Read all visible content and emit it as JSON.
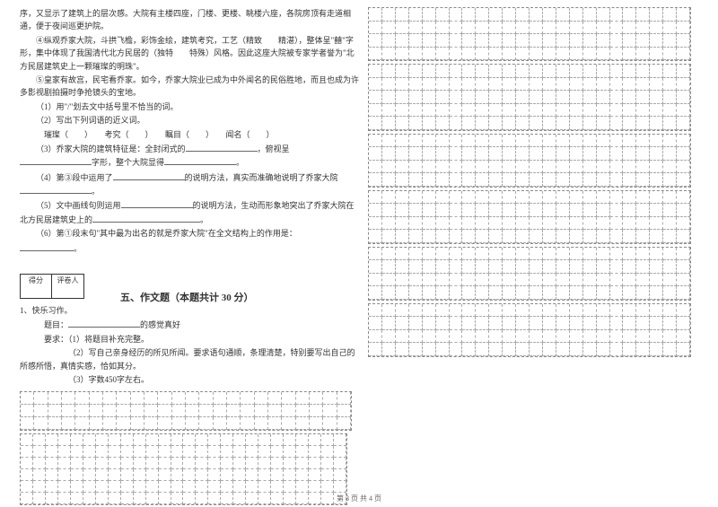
{
  "passage": {
    "p1": "序，又显示了建筑上的层次感。大院有主楼四座，门楼、更楼、眺楼六座，各院房顶有走道相通，便于夜间巡更护院。",
    "p2": "④纵观乔家大院，斗拱飞檐，彩饰金绘，建筑考究，工艺（精致　　精湛），整体呈\"囍\"字形，集中体现了我国清代北方民居的（独特　　特殊）风格。因此这座大院被专家学者誉为\"北方民居建筑史上一颗璀璨的明珠\"。",
    "p3": "⑤皇家有故宫，民宅看乔家。如今，乔家大院业已成为中外闻名的民俗胜地，而且也成为许多影视剧拍摄时争抢镜头的宝地。",
    "q1": "（1）用\"/\"划去文中括号里不恰当的词。",
    "q2": "（2）写出下列词语的近义词。",
    "q2_words": "璀璨（　　）　　考究（　　）　　瞩目（　　）　　闻名（　　）",
    "q3a": "（3）乔家大院的建筑特征是：全封闭式的",
    "q3b": "，俯视呈",
    "q3c": "字形，整个大院显得",
    "q4a": "（4）第③段中运用了",
    "q4b": "的说明方法，真实而准确地说明了乔家大院",
    "q5a": "（5）文中画线句则运用",
    "q5b": "的说明方法，生动而形象地突出了乔家大院在北方民居建筑史上的",
    "q6a": "（6）第①段末句\"其中最为出名的就是乔家大院\"在全文结构上的作用是："
  },
  "scoreBox": {
    "label1": "得分",
    "label2": "评卷人"
  },
  "section5": {
    "title": "五、作文题（本题共计 30 分）",
    "q1": "1、快乐习作。",
    "topic_label": "题目：",
    "topic_suffix": "的感觉真好",
    "req_label": "要求：",
    "req1": "（1）将题目补充完整。",
    "req2": "（2）写自己亲身经历的所见所闻。要求语句通顺，条理清楚，特别要写出自己的所感所悟，真情实感，恰如其分。",
    "req3": "（3）字数450字左右。"
  },
  "footer": "第 3 页 共 4 页",
  "gridConfig": {
    "leftGrid1_rows": 3,
    "leftGrid1_cols": 24,
    "leftGrid2_rows": 6,
    "leftGrid2_cols": 26,
    "rightGrids": [
      {
        "rows": 4,
        "cols": 24
      },
      {
        "rows": 5,
        "cols": 24
      },
      {
        "rows": 4,
        "cols": 24
      },
      {
        "rows": 4,
        "cols": 24
      },
      {
        "rows": 4,
        "cols": 24
      },
      {
        "rows": 4,
        "cols": 24
      }
    ]
  }
}
